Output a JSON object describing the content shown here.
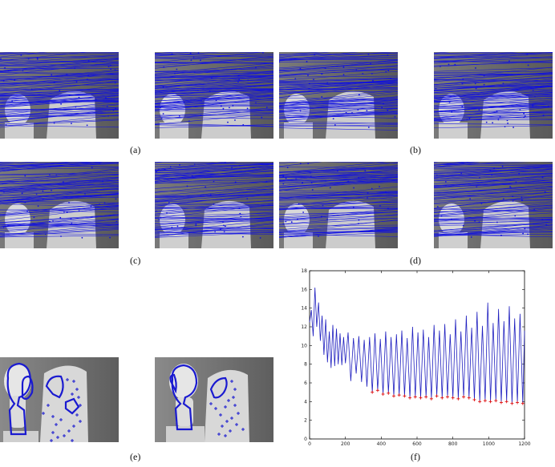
{
  "captions": {
    "a": "(a)",
    "b": "(b)",
    "c": "(c)",
    "d": "(d)",
    "e": "(e)",
    "f": "(f)"
  },
  "colors": {
    "match_line": "#1010e0",
    "contour": "#1a1ad0",
    "series_line": "#1f1fbf",
    "marker": "#e01010",
    "background": "#ffffff"
  },
  "chart_data": {
    "type": "line",
    "title": "",
    "xlabel": "",
    "ylabel": "",
    "xlim": [
      0,
      1200
    ],
    "ylim": [
      0,
      18
    ],
    "xticks": [
      0,
      200,
      400,
      600,
      800,
      1000,
      1200
    ],
    "yticks": [
      0,
      2,
      4,
      6,
      8,
      10,
      12,
      14,
      16,
      18
    ],
    "grid": false,
    "series": [
      {
        "style": "blue line",
        "x": [
          0,
          10,
          20,
          30,
          40,
          50,
          60,
          70,
          80,
          90,
          100,
          110,
          120,
          130,
          140,
          150,
          160,
          170,
          180,
          190,
          200,
          215,
          230,
          245,
          260,
          275,
          290,
          305,
          320,
          335,
          350,
          365,
          380,
          395,
          410,
          425,
          440,
          455,
          470,
          485,
          500,
          515,
          530,
          545,
          560,
          575,
          590,
          605,
          620,
          635,
          650,
          665,
          680,
          695,
          710,
          725,
          740,
          755,
          770,
          785,
          800,
          815,
          830,
          845,
          860,
          875,
          890,
          905,
          920,
          935,
          950,
          965,
          980,
          995,
          1010,
          1025,
          1040,
          1055,
          1070,
          1085,
          1100,
          1115,
          1130,
          1145,
          1160,
          1175,
          1190,
          1200
        ],
        "y": [
          12.5,
          13.8,
          11.0,
          16.2,
          12.0,
          14.6,
          10.5,
          13.2,
          9.0,
          12.8,
          8.2,
          11.5,
          7.6,
          12.2,
          7.8,
          11.8,
          8.0,
          11.3,
          7.9,
          10.9,
          8.1,
          11.4,
          6.2,
          10.8,
          7.0,
          11.0,
          6.1,
          10.6,
          5.6,
          10.9,
          5.0,
          11.3,
          5.2,
          10.7,
          4.8,
          11.5,
          4.9,
          10.9,
          4.6,
          11.2,
          4.7,
          11.6,
          4.6,
          10.8,
          4.4,
          12.0,
          4.5,
          11.4,
          4.4,
          11.7,
          4.5,
          10.9,
          4.3,
          12.2,
          4.6,
          11.6,
          4.4,
          12.3,
          4.5,
          11.2,
          4.4,
          12.8,
          4.3,
          11.5,
          4.5,
          13.2,
          4.4,
          11.9,
          4.2,
          13.6,
          4.0,
          12.1,
          4.1,
          14.6,
          4.0,
          12.4,
          4.1,
          13.9,
          3.9,
          12.6,
          4.0,
          14.2,
          3.8,
          12.9,
          3.9,
          13.4,
          3.8,
          11.6
        ]
      },
      {
        "style": "red markers",
        "x": [
          350,
          380,
          410,
          440,
          470,
          500,
          530,
          560,
          590,
          620,
          650,
          680,
          710,
          740,
          770,
          800,
          830,
          860,
          890,
          920,
          950,
          980,
          1010,
          1040,
          1070,
          1100,
          1130,
          1160,
          1190
        ],
        "y": [
          5.0,
          5.2,
          4.8,
          4.9,
          4.6,
          4.7,
          4.6,
          4.4,
          4.5,
          4.4,
          4.5,
          4.3,
          4.6,
          4.4,
          4.5,
          4.4,
          4.3,
          4.5,
          4.4,
          4.2,
          4.0,
          4.1,
          4.0,
          4.1,
          3.9,
          4.0,
          3.8,
          3.9,
          3.8
        ]
      }
    ]
  }
}
